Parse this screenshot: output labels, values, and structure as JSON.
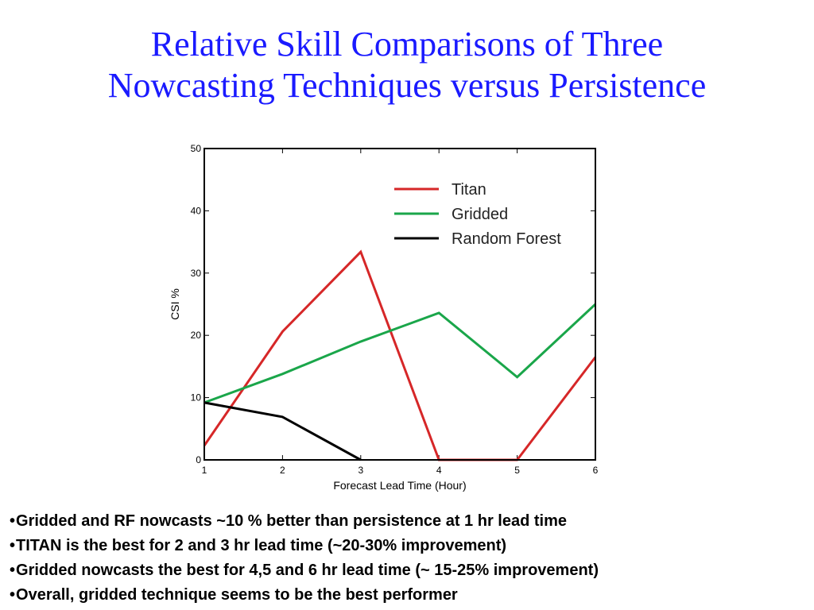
{
  "slide": {
    "title_line1": "Relative Skill Comparisons of Three",
    "title_line2": "Nowcasting Techniques versus Persistence"
  },
  "chart_data": {
    "type": "line",
    "xlabel": "Forecast Lead Time (Hour)",
    "ylabel": "CSI %",
    "x": [
      1,
      2,
      3,
      4,
      5,
      6
    ],
    "xlim": [
      1,
      6
    ],
    "ylim": [
      0,
      50
    ],
    "xticks": [
      1,
      2,
      3,
      4,
      5,
      6
    ],
    "yticks": [
      0,
      10,
      20,
      30,
      40,
      50
    ],
    "grid": false,
    "legend_position": "top-right",
    "series": [
      {
        "name": "Titan",
        "color": "#d62728",
        "x": [
          1,
          2,
          3,
          4,
          5,
          6
        ],
        "values": [
          2.3,
          20.6,
          33.4,
          0,
          0,
          16.5
        ]
      },
      {
        "name": "Gridded",
        "color": "#1aa64a",
        "x": [
          1,
          2,
          3,
          4,
          5,
          6
        ],
        "values": [
          9.2,
          13.8,
          19.0,
          23.6,
          13.3,
          25.0
        ]
      },
      {
        "name": "Random Forest",
        "color": "#000000",
        "x": [
          1,
          2,
          3
        ],
        "values": [
          9.2,
          6.9,
          0
        ]
      }
    ]
  },
  "bullets": [
    "Gridded and RF nowcasts ~10 % better than persistence at 1 hr lead time",
    "TITAN is the best for 2 and 3 hr lead time (~20-30% improvement)",
    "Gridded nowcasts the best for 4,5 and 6 hr lead time (~ 15-25% improvement)",
    "Overall, gridded technique seems to be the best performer"
  ],
  "bullet_char": "•"
}
